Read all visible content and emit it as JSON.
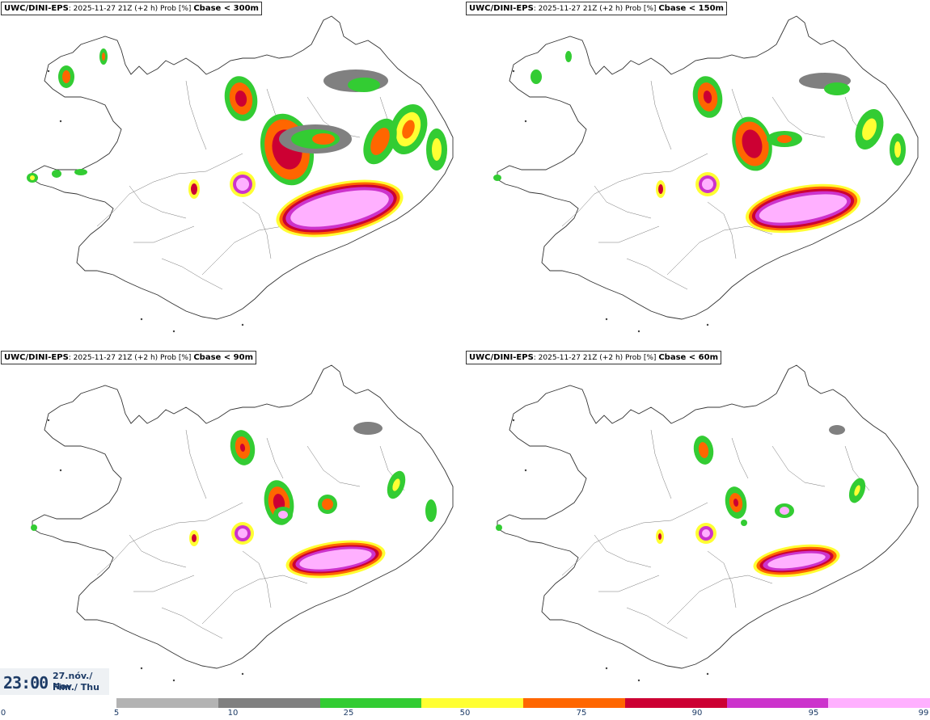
{
  "panels": [
    {
      "model": "UWC/DINI-EPS",
      "info": ": 2025-11-27 21Z (+2 h) Prob [%]",
      "threshold": "Cbase < 300m"
    },
    {
      "model": "UWC/DINI-EPS",
      "info": ": 2025-11-27 21Z (+2 h) Prob [%]",
      "threshold": "Cbase < 150m"
    },
    {
      "model": "UWC/DINI-EPS",
      "info": ": 2025-11-27 21Z (+2 h) Prob [%]",
      "threshold": "Cbase < 90m"
    },
    {
      "model": "UWC/DINI-EPS",
      "info": ": 2025-11-27 21Z (+2 h) Prob [%]",
      "threshold": "Cbase < 60m"
    }
  ],
  "time": {
    "clock": "23:00",
    "date": "27.nóv./ Nov",
    "day": "Fim./ Thu"
  },
  "legend": {
    "ticks": [
      "0",
      "5",
      "10",
      "25",
      "50",
      "75",
      "90",
      "95",
      "99"
    ],
    "colors": [
      "#b3b3b3",
      "#808080",
      "#33cc33",
      "#ffff33",
      "#ff6600",
      "#cc0033",
      "#cc33cc",
      "#ffb0ff"
    ]
  }
}
